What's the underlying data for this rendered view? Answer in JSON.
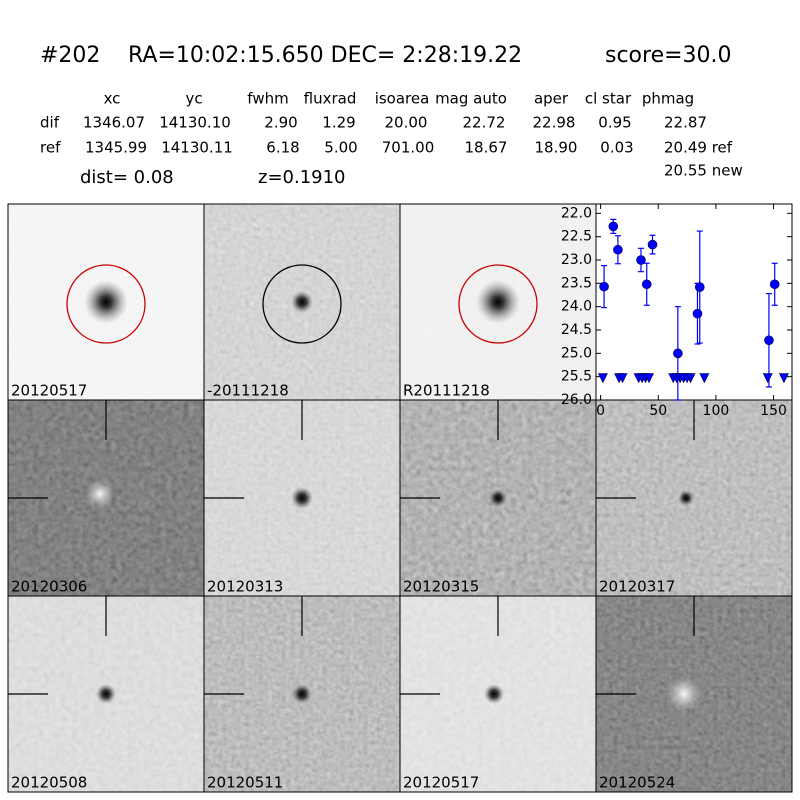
{
  "header": {
    "id": "#202",
    "coords": "RA=10:02:15.650 DEC= 2:28:19.22",
    "score": "score=30.0"
  },
  "table": {
    "columns": [
      "xc",
      "yc",
      "fwhm",
      "fluxrad",
      "isoarea",
      "mag auto",
      "aper",
      "cl star",
      "phmag"
    ],
    "rows": [
      [
        "dif",
        "1346.07",
        "14130.10",
        "2.90",
        "1.29",
        "20.00",
        "22.72",
        "22.98",
        "0.95",
        "22.87"
      ],
      [
        "ref",
        "1345.99",
        "14130.11",
        "6.18",
        "5.00",
        "701.00",
        "18.67",
        "18.90",
        "0.03",
        "20.49 ref"
      ]
    ],
    "extra": "20.55 new"
  },
  "dist": "dist=  0.08",
  "z": "z=0.1910",
  "panels": [
    {
      "label": "20120517"
    },
    {
      "label": "-20111218"
    },
    {
      "label": "R20111218"
    },
    {
      "label": "20120306"
    },
    {
      "label": "20120313"
    },
    {
      "label": "20120315"
    },
    {
      "label": "20120317"
    },
    {
      "label": "20120508"
    },
    {
      "label": "20120511"
    },
    {
      "label": "20120517",
      "color": "#ff0000"
    },
    {
      "label": "20120524"
    }
  ],
  "chart_data": {
    "type": "scatter",
    "invert_y": true,
    "xlim": [
      -4,
      166
    ],
    "xticks": [
      0,
      50,
      100,
      150
    ],
    "ylim": [
      26.0,
      21.8
    ],
    "yticks": [
      {
        "value": 22.0,
        "label": "22.0"
      },
      {
        "value": 22.5,
        "label": "22.5"
      },
      {
        "value": 23.0,
        "label": "23.0"
      },
      {
        "value": 23.5,
        "label": "23.5"
      },
      {
        "value": 24.0,
        "label": "24.0"
      },
      {
        "value": 24.5,
        "label": "24.5"
      },
      {
        "value": 25.0,
        "label": "25.0"
      },
      {
        "value": 25.5,
        "label": "25.5"
      },
      {
        "value": 26.0,
        "label": "26.0"
      }
    ],
    "series": [
      {
        "marker": "circle",
        "color": "#0000ff",
        "x": [
          3,
          11,
          15,
          35,
          40,
          45,
          67,
          84,
          86,
          146,
          151
        ],
        "values": [
          23.57,
          22.28,
          22.78,
          23.0,
          23.52,
          22.67,
          25.0,
          24.15,
          23.58,
          24.72,
          23.52
        ],
        "errors": [
          0.45,
          0.15,
          0.3,
          0.25,
          0.45,
          0.2,
          1.0,
          0.65,
          1.2,
          1.0,
          0.45
        ]
      },
      {
        "marker": "triangle-down",
        "color": "#0000ff",
        "x": [
          2,
          16,
          19,
          33,
          36,
          39,
          42,
          63,
          66,
          69,
          72,
          75,
          78,
          90,
          145,
          159
        ],
        "values": [
          25.52,
          25.52,
          25.52,
          25.52,
          25.52,
          25.52,
          25.52,
          25.52,
          25.52,
          25.52,
          25.52,
          25.52,
          25.52,
          25.52,
          25.52,
          25.52
        ]
      }
    ]
  }
}
